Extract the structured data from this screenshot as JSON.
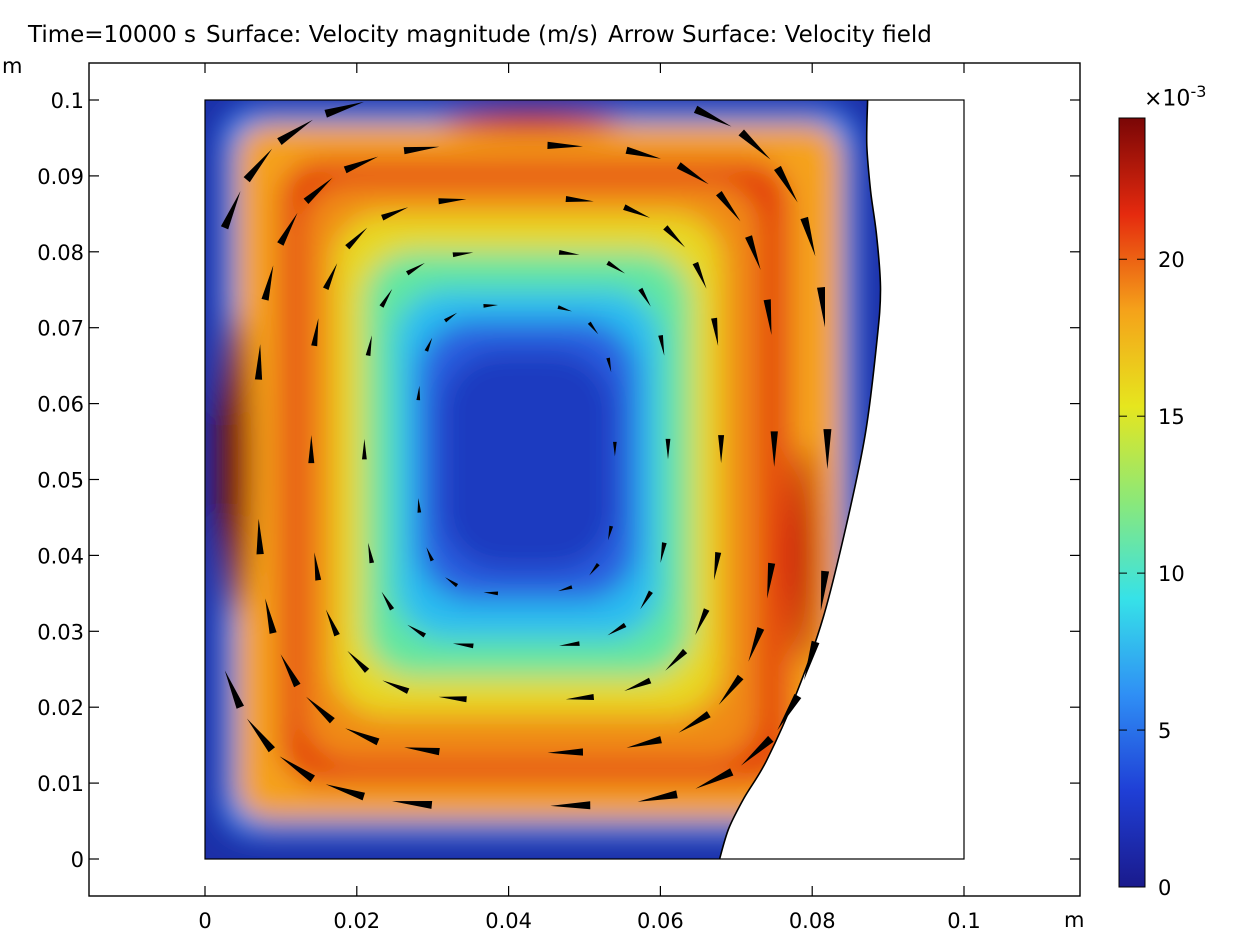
{
  "title": {
    "time": "Time=10000 s",
    "surface": "Surface: Velocity magnitude (m/s)",
    "arrow": "Arrow Surface: Velocity field"
  },
  "chart_data": {
    "type": "heatmap",
    "description_of_series": "Surface plot of velocity magnitude with velocity arrows (single recirculating vortex, clockwise)",
    "x_unit": "m",
    "y_unit": "m",
    "xlim": [
      -0.0153,
      0.1
    ],
    "ylim": [
      -0.005,
      0.105
    ],
    "x_ticks": [
      0,
      0.02,
      0.04,
      0.06,
      0.08,
      0.1
    ],
    "x_tick_labels": [
      "0",
      "0.02",
      "0.04",
      "0.06",
      "0.08",
      "0.1"
    ],
    "y_ticks": [
      0,
      0.01,
      0.02,
      0.03,
      0.04,
      0.05,
      0.06,
      0.07,
      0.08,
      0.09,
      0.1
    ],
    "y_tick_labels": [
      "0",
      "0.01",
      "0.02",
      "0.03",
      "0.04",
      "0.05",
      "0.06",
      "0.07",
      "0.08",
      "0.09",
      "0.1"
    ],
    "domain_box": {
      "x": [
        0,
        0.1
      ],
      "y": [
        0,
        0.1
      ]
    },
    "deformed_right_boundary": [
      [
        0.0678,
        0.0
      ],
      [
        0.069,
        0.004
      ],
      [
        0.071,
        0.008
      ],
      [
        0.074,
        0.013
      ],
      [
        0.078,
        0.022
      ],
      [
        0.0815,
        0.032
      ],
      [
        0.0845,
        0.044
      ],
      [
        0.087,
        0.056
      ],
      [
        0.0885,
        0.068
      ],
      [
        0.089,
        0.075
      ],
      [
        0.0885,
        0.082
      ],
      [
        0.0877,
        0.088
      ],
      [
        0.0872,
        0.094
      ],
      [
        0.0873,
        0.1
      ]
    ],
    "colorbar": {
      "multiplier": "×10",
      "exponent": "-3",
      "min": 0,
      "max": 24.5,
      "ticks": [
        0,
        5,
        10,
        15,
        20
      ],
      "tick_labels": [
        "0",
        "5",
        "10",
        "15",
        "20"
      ],
      "colormap": "rainbow",
      "colormap_stops": [
        "#1a1a8c",
        "#1f3fd6",
        "#2f8ff5",
        "#36e2e8",
        "#8ae87a",
        "#e6e61e",
        "#f5a21a",
        "#e52a0e",
        "#7a0606"
      ]
    },
    "vortex_center": [
      0.041,
      0.054
    ],
    "vortex_direction": "clockwise"
  }
}
